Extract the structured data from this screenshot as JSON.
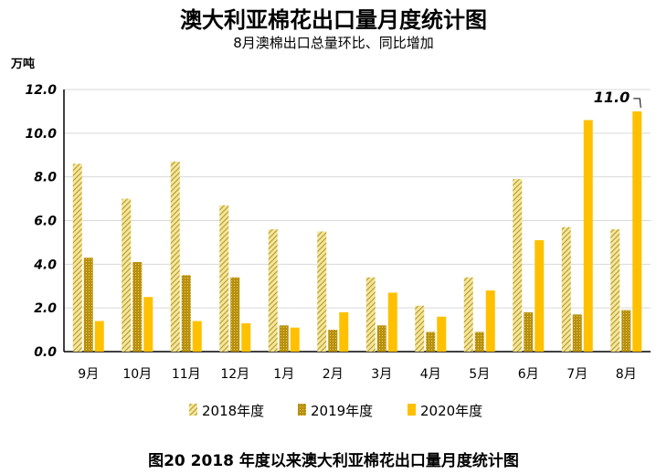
{
  "chart_data": {
    "type": "bar",
    "title": "澳大利亚棉花出口量月度统计图",
    "subtitle": "8月澳棉出口总量环比、同比增加",
    "unit": "万吨",
    "caption": "图20   2018 年度以来澳大利亚棉花出口量月度统计图",
    "categories": [
      "9月",
      "10月",
      "11月",
      "12月",
      "1月",
      "2月",
      "3月",
      "4月",
      "5月",
      "6月",
      "7月",
      "8月"
    ],
    "ylim": [
      0,
      12
    ],
    "yticks": [
      "0.0",
      "2.0",
      "4.0",
      "6.0",
      "8.0",
      "10.0",
      "12.0"
    ],
    "grid": true,
    "legend_position": "bottom",
    "series": [
      {
        "name": "2018年度",
        "color": "#B89A1E",
        "pattern": "diagonal-hatch",
        "values": [
          8.6,
          7.0,
          8.7,
          6.7,
          5.6,
          5.5,
          3.4,
          2.1,
          3.4,
          7.9,
          5.7,
          5.6
        ]
      },
      {
        "name": "2019年度",
        "color": "#B8900F",
        "pattern": "dotted",
        "values": [
          4.3,
          4.1,
          3.5,
          3.4,
          1.2,
          1.0,
          1.2,
          0.9,
          0.9,
          1.8,
          1.7,
          1.9
        ]
      },
      {
        "name": "2020年度",
        "color": "#FFC000",
        "pattern": "solid",
        "values": [
          1.4,
          2.5,
          1.4,
          1.3,
          1.1,
          1.8,
          2.7,
          1.6,
          2.8,
          5.1,
          10.6,
          11.0
        ]
      }
    ],
    "annotations": [
      {
        "series": "2020年度",
        "category": "8月",
        "text": "11.0"
      }
    ]
  }
}
